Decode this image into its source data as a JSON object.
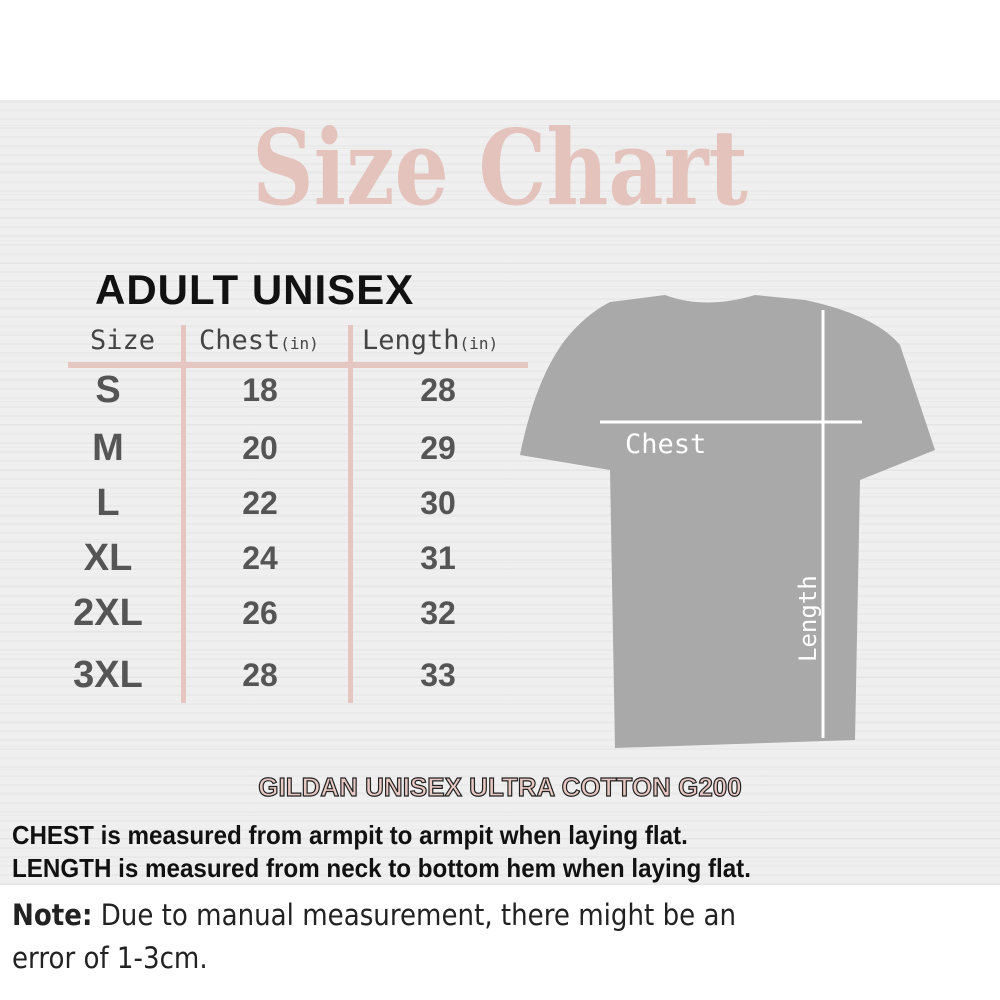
{
  "title": "Size Chart",
  "subtitle": "ADULT UNISEX",
  "table": {
    "headers": [
      {
        "label": "Size",
        "unit": ""
      },
      {
        "label": "Chest",
        "unit": "(in)"
      },
      {
        "label": "Length",
        "unit": "(in)"
      }
    ],
    "rows": [
      {
        "size": "S",
        "chest": "18",
        "length": "28"
      },
      {
        "size": "M",
        "chest": "20",
        "length": "29"
      },
      {
        "size": "L",
        "chest": "22",
        "length": "30"
      },
      {
        "size": "XL",
        "chest": "24",
        "length": "31"
      },
      {
        "size": "2XL",
        "chest": "26",
        "length": "32"
      },
      {
        "size": "3XL",
        "chest": "28",
        "length": "33"
      }
    ]
  },
  "diagram": {
    "chest_label": "Chest",
    "length_label": "Length"
  },
  "product": "GILDAN UNISEX ULTRA COTTON G200",
  "instructions": [
    {
      "bold": "CHEST",
      "text": " is measured from armpit to armpit when laying flat."
    },
    {
      "bold": "LENGTH",
      "text": " is measured from neck to bottom hem when laying flat."
    }
  ],
  "note": {
    "bold": "Note:",
    "text": " Due to manual measurement, there might be an",
    "text2": "error of 1-3cm."
  },
  "colors": {
    "accent": "#e4c3bd",
    "shirt": "#a9a9a9"
  }
}
